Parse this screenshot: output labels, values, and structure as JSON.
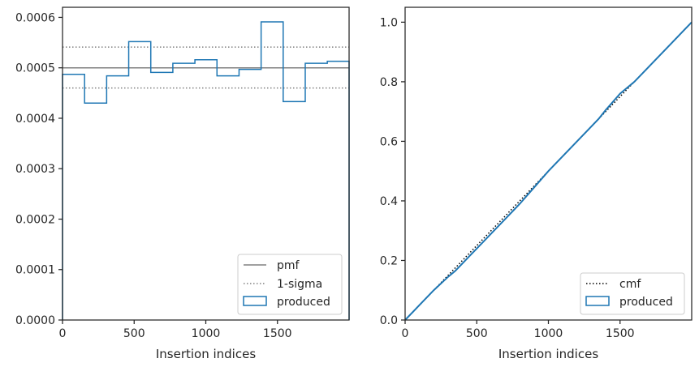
{
  "chart_data": [
    {
      "type": "histogram",
      "xlabel": "Insertion indices",
      "ylabel": "",
      "xlim": [
        0,
        2000
      ],
      "ylim": [
        0,
        0.00062
      ],
      "xticks": [
        0,
        500,
        1000,
        1500
      ],
      "xtick_labels": [
        "0",
        "500",
        "1000",
        "1500"
      ],
      "yticks": [
        0,
        0.0001,
        0.0002,
        0.0003,
        0.0004,
        0.0005,
        0.0006
      ],
      "ytick_labels": [
        "0.0000",
        "0.0001",
        "0.0002",
        "0.0003",
        "0.0004",
        "0.0005",
        "0.0006"
      ],
      "bin_edges": [
        0,
        154,
        308,
        462,
        616,
        770,
        924,
        1078,
        1232,
        1386,
        1540,
        1694,
        1848,
        2000
      ],
      "series": [
        {
          "name": "produced",
          "style": "step",
          "color": "#1f77b4",
          "values": [
            0.000487,
            0.00043,
            0.000484,
            0.000552,
            0.000491,
            0.000509,
            0.000516,
            0.000484,
            0.000497,
            0.000591,
            0.000433,
            0.000509,
            0.000513
          ]
        }
      ],
      "hlines": [
        {
          "name": "pmf",
          "y": 0.0005,
          "color": "#808080",
          "style": "solid"
        },
        {
          "name": "1-sigma",
          "y": 0.000541,
          "color": "#808080",
          "style": "dotted"
        },
        {
          "name": "1-sigma",
          "y": 0.00046,
          "color": "#808080",
          "style": "dotted"
        }
      ],
      "legend": {
        "position": "lower-right",
        "entries": [
          "pmf",
          "1-sigma",
          "produced"
        ]
      }
    },
    {
      "type": "line",
      "xlabel": "Insertion indices",
      "ylabel": "",
      "xlim": [
        0,
        2000
      ],
      "ylim": [
        0,
        1.05
      ],
      "xticks": [
        0,
        500,
        1000,
        1500
      ],
      "xtick_labels": [
        "0",
        "500",
        "1000",
        "1500"
      ],
      "yticks": [
        0,
        0.2,
        0.4,
        0.6,
        0.8,
        1.0
      ],
      "ytick_labels": [
        "0.0",
        "0.2",
        "0.4",
        "0.6",
        "0.8",
        "1.0"
      ],
      "series": [
        {
          "name": "cmf",
          "color": "#000000",
          "style": "dotted",
          "x": [
            0,
            2000
          ],
          "y": [
            0,
            1.0
          ]
        },
        {
          "name": "produced",
          "color": "#1f77b4",
          "style": "solid",
          "x": [
            0,
            100,
            200,
            300,
            350,
            400,
            450,
            500,
            600,
            700,
            800,
            900,
            1000,
            1100,
            1200,
            1300,
            1350,
            1400,
            1500,
            1550,
            1600,
            1700,
            1800,
            1900,
            1950,
            2000
          ],
          "y": [
            0,
            0.05,
            0.1,
            0.145,
            0.165,
            0.19,
            0.215,
            0.24,
            0.29,
            0.34,
            0.39,
            0.445,
            0.5,
            0.55,
            0.6,
            0.65,
            0.675,
            0.705,
            0.76,
            0.78,
            0.8,
            0.85,
            0.9,
            0.95,
            0.975,
            1.0
          ]
        }
      ],
      "legend": {
        "position": "lower-right",
        "entries": [
          "cmf",
          "produced"
        ]
      }
    }
  ]
}
